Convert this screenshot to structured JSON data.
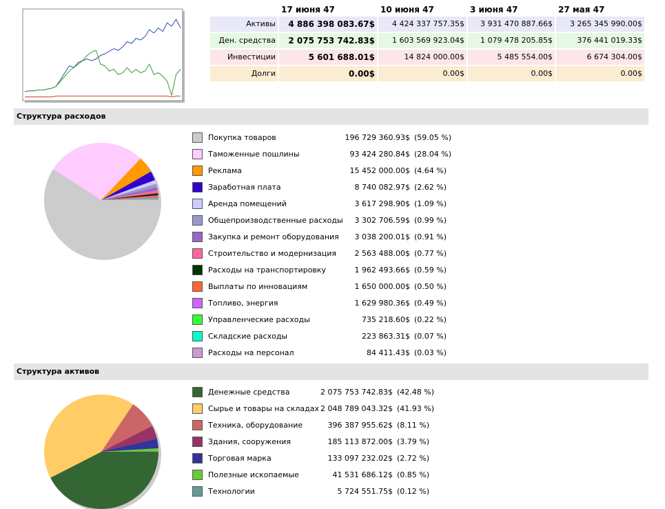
{
  "sparkline": {
    "ylim": [
      0,
      100
    ],
    "series": [
      {
        "color": "#2a4fa8",
        "values": [
          8,
          9,
          9,
          10,
          10,
          11,
          12,
          14,
          22,
          30,
          38,
          36,
          42,
          44,
          46,
          44,
          46,
          50,
          52,
          55,
          58,
          56,
          60,
          66,
          64,
          70,
          68,
          72,
          80,
          76,
          82,
          78,
          88,
          84,
          92,
          82
        ]
      },
      {
        "color": "#3a9a3a",
        "values": [
          8,
          9,
          9,
          10,
          10,
          11,
          12,
          14,
          20,
          26,
          32,
          36,
          40,
          44,
          50,
          54,
          56,
          40,
          38,
          32,
          34,
          28,
          30,
          36,
          30,
          34,
          30,
          32,
          40,
          28,
          30,
          26,
          20,
          4,
          28,
          34
        ]
      },
      {
        "color": "#d04020",
        "values": [
          2,
          2,
          2,
          2,
          2,
          2,
          2,
          3,
          3,
          3,
          3,
          3,
          3,
          3,
          3,
          3,
          3,
          3,
          3,
          3,
          3,
          3,
          3,
          3,
          3,
          3,
          3,
          3,
          3,
          3,
          3,
          3,
          3,
          2,
          3,
          3
        ]
      }
    ]
  },
  "summary": {
    "columns": [
      "17 июня 47",
      "10 июня 47",
      "3 июня 47",
      "27 мая 47"
    ],
    "rows": [
      {
        "label": "Активы",
        "color": "#e8e8f8",
        "values": [
          "4 886 398 083.67$",
          "4 424 337 757.35$",
          "3 931 470 887.66$",
          "3 265 345 990.00$"
        ]
      },
      {
        "label": "Ден. средства",
        "color": "#e4f8e4",
        "values": [
          "2 075 753 742.83$",
          "1 603 569 923.04$",
          "1 079 478 205.85$",
          "376 441 019.33$"
        ]
      },
      {
        "label": "Инвестиции",
        "color": "#fce6ea",
        "values": [
          "5 601 688.01$",
          "14 824 000.00$",
          "5 485 554.00$",
          "6 674 304.00$"
        ]
      },
      {
        "label": "Долги",
        "color": "#fcecd2",
        "values": [
          "0.00$",
          "0.00$",
          "0.00$",
          "0.00$"
        ]
      }
    ]
  },
  "expenses": {
    "title": "Структура расходов",
    "items": [
      {
        "name": "Покупка товаров",
        "color": "#cccccc",
        "amount": "196 729 360.93$",
        "share": 59.05,
        "share_label": "(59.05 %)"
      },
      {
        "name": "Таможенные пошлины",
        "color": "#ffccff",
        "amount": "93 424 280.84$",
        "share": 28.04,
        "share_label": "(28.04 %)"
      },
      {
        "name": "Реклама",
        "color": "#ff9900",
        "amount": "15 452 000.00$",
        "share": 4.64,
        "share_label": "(4.64 %)"
      },
      {
        "name": "Заработная плата",
        "color": "#3300cc",
        "amount": "8 740 082.97$",
        "share": 2.62,
        "share_label": "(2.62 %)"
      },
      {
        "name": "Аренда помещений",
        "color": "#ccccff",
        "amount": "3 617 298.90$",
        "share": 1.09,
        "share_label": "(1.09 %)"
      },
      {
        "name": "Общепроизводственные расходы",
        "color": "#9999cc",
        "amount": "3 302 706.59$",
        "share": 0.99,
        "share_label": "(0.99 %)"
      },
      {
        "name": "Закупка и ремонт оборудования",
        "color": "#9966cc",
        "amount": "3 038 200.01$",
        "share": 0.91,
        "share_label": "(0.91 %)"
      },
      {
        "name": "Строительство и модернизация",
        "color": "#ff6699",
        "amount": "2 563 488.00$",
        "share": 0.77,
        "share_label": "(0.77 %)"
      },
      {
        "name": "Расходы на транспортировку",
        "color": "#003300",
        "amount": "1 962 493.66$",
        "share": 0.59,
        "share_label": "(0.59 %)"
      },
      {
        "name": "Выплаты по инновациям",
        "color": "#ff6633",
        "amount": "1 650 000.00$",
        "share": 0.5,
        "share_label": "(0.50 %)"
      },
      {
        "name": "Топливо, энергия",
        "color": "#cc66ff",
        "amount": "1 629 980.36$",
        "share": 0.49,
        "share_label": "(0.49 %)"
      },
      {
        "name": "Управленческие расходы",
        "color": "#33ff33",
        "amount": "735 218.60$",
        "share": 0.22,
        "share_label": "(0.22 %)"
      },
      {
        "name": "Складские расходы",
        "color": "#00ffcc",
        "amount": "223 863.31$",
        "share": 0.07,
        "share_label": "(0.07 %)"
      },
      {
        "name": "Расходы на персонал",
        "color": "#cc99cc",
        "amount": "84 411.43$",
        "share": 0.03,
        "share_label": "(0.03 %)"
      }
    ]
  },
  "assets": {
    "title": "Структура активов",
    "items": [
      {
        "name": "Денежные средства",
        "color": "#336633",
        "amount": "2 075 753 742.83$",
        "share": 42.48,
        "share_label": "(42.48 %)"
      },
      {
        "name": "Сырье и товары на складах",
        "color": "#ffcc66",
        "amount": "2 048 789 043.32$",
        "share": 41.93,
        "share_label": "(41.93 %)"
      },
      {
        "name": "Техника, оборудование",
        "color": "#cc6666",
        "amount": "396 387 955.62$",
        "share": 8.11,
        "share_label": "(8.11 %)"
      },
      {
        "name": "Здания, сооружения",
        "color": "#993366",
        "amount": "185 113 872.00$",
        "share": 3.79,
        "share_label": "(3.79 %)"
      },
      {
        "name": "Торговая марка",
        "color": "#333399",
        "amount": "133 097 232.02$",
        "share": 2.72,
        "share_label": "(2.72 %)"
      },
      {
        "name": "Полезные ископаемые",
        "color": "#66cc33",
        "amount": "41 531 686.12$",
        "share": 0.85,
        "share_label": "(0.85 %)"
      },
      {
        "name": "Технологии",
        "color": "#669999",
        "amount": "5 724 551.75$",
        "share": 0.12,
        "share_label": "(0.12 %)"
      }
    ]
  }
}
